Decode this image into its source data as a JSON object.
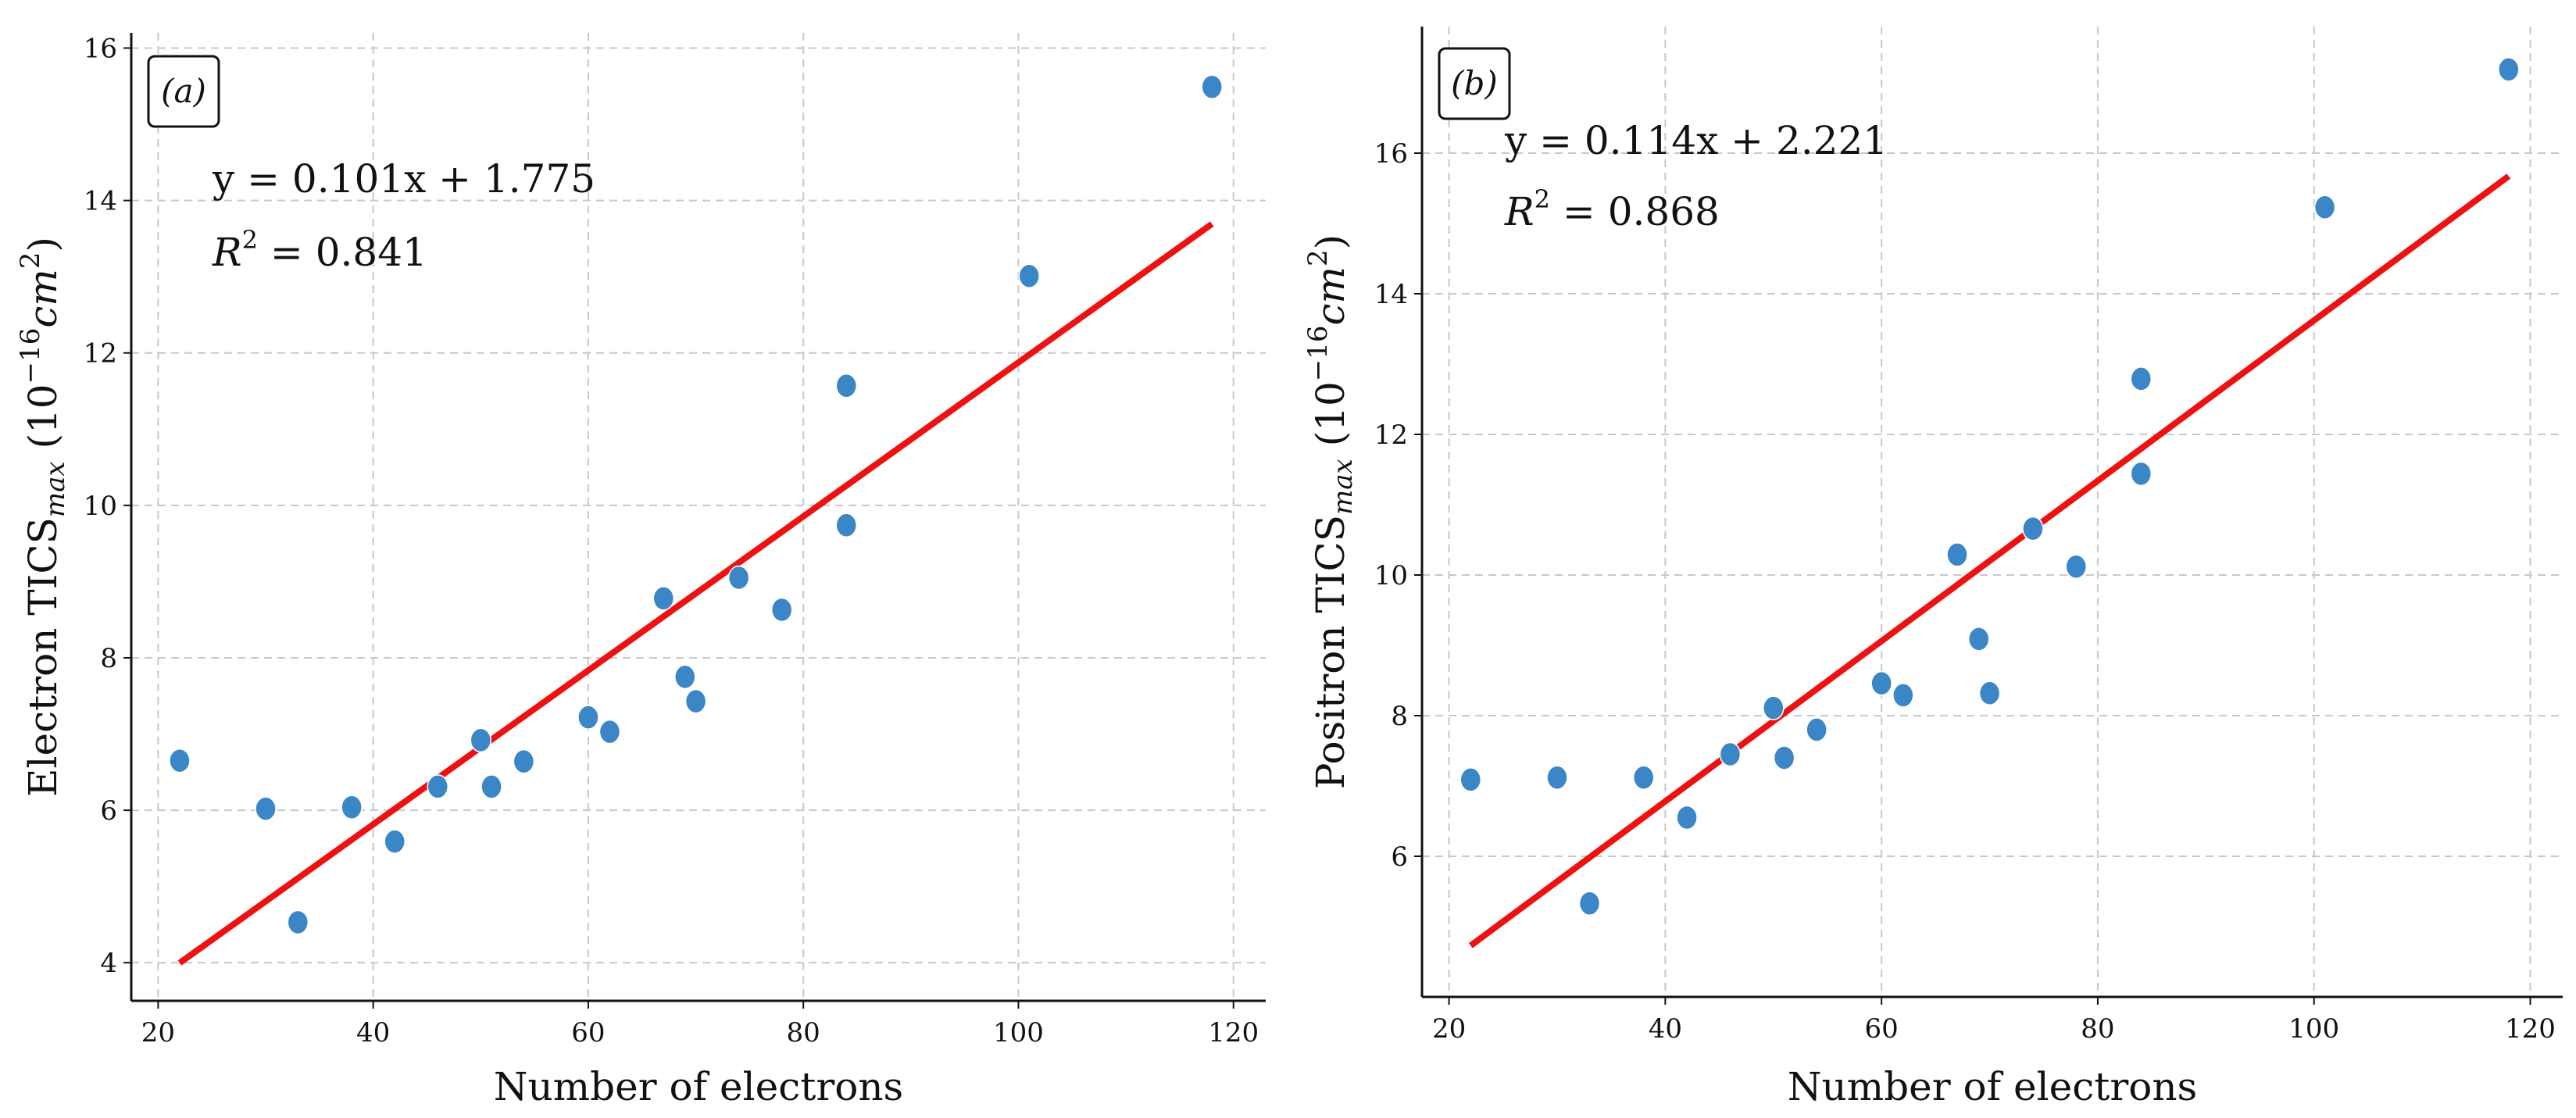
{
  "colors": {
    "points": "#3b86c6",
    "fit_line": "#ee1111",
    "grid": "#c8c8c8",
    "axis": "#111111"
  },
  "chart_data": [
    {
      "type": "scatter",
      "panel_label": "(a)",
      "xlabel": "Number of electrons",
      "ylabel": "Electron TICS",
      "ylabel_sub": "max",
      "ylabel_unit_open": "(10",
      "ylabel_unit_exp": "−16",
      "ylabel_unit_cm": "cm",
      "ylabel_unit_cm_exp": "2",
      "ylabel_unit_close": ")",
      "equation": "y = 0.101x + 1.775",
      "r2_label": "R",
      "r2_sup": "2",
      "r2_value": " = 0.841",
      "xlim": [
        17.5,
        123
      ],
      "ylim": [
        3.5,
        16.2
      ],
      "xticks": [
        20,
        40,
        60,
        80,
        100,
        120
      ],
      "yticks": [
        4,
        6,
        8,
        10,
        12,
        14,
        16
      ],
      "fit": {
        "slope": 0.101,
        "intercept": 1.775,
        "x_range": [
          22,
          118
        ]
      },
      "points": [
        {
          "x": 22,
          "y": 6.65
        },
        {
          "x": 30,
          "y": 6.02
        },
        {
          "x": 33,
          "y": 4.53
        },
        {
          "x": 38,
          "y": 6.04
        },
        {
          "x": 42,
          "y": 5.59
        },
        {
          "x": 46,
          "y": 6.31
        },
        {
          "x": 50,
          "y": 6.92
        },
        {
          "x": 51,
          "y": 6.31
        },
        {
          "x": 54,
          "y": 6.64
        },
        {
          "x": 60,
          "y": 7.22
        },
        {
          "x": 62,
          "y": 7.03
        },
        {
          "x": 67,
          "y": 8.78
        },
        {
          "x": 69,
          "y": 7.75
        },
        {
          "x": 70,
          "y": 7.43
        },
        {
          "x": 74,
          "y": 9.05
        },
        {
          "x": 78,
          "y": 8.63
        },
        {
          "x": 84,
          "y": 11.57
        },
        {
          "x": 84,
          "y": 9.74
        },
        {
          "x": 101,
          "y": 13.01
        },
        {
          "x": 118,
          "y": 15.49
        }
      ]
    },
    {
      "type": "scatter",
      "panel_label": "(b)",
      "xlabel": "Number of electrons",
      "ylabel": "Positron TICS",
      "ylabel_sub": "max",
      "ylabel_unit_open": "(10",
      "ylabel_unit_exp": "−16",
      "ylabel_unit_cm": "cm",
      "ylabel_unit_cm_exp": "2",
      "ylabel_unit_close": ")",
      "equation": "y = 0.114x + 2.221",
      "r2_label": "R",
      "r2_sup": "2",
      "r2_value": " = 0.868",
      "xlim": [
        17.5,
        123
      ],
      "ylim": [
        4.0,
        17.8
      ],
      "xticks": [
        20,
        40,
        60,
        80,
        100,
        120
      ],
      "yticks": [
        6,
        8,
        10,
        12,
        14,
        16
      ],
      "fit": {
        "slope": 0.114,
        "intercept": 2.221,
        "x_range": [
          22,
          118
        ]
      },
      "points": [
        {
          "x": 22,
          "y": 7.09
        },
        {
          "x": 30,
          "y": 7.12
        },
        {
          "x": 33,
          "y": 5.33
        },
        {
          "x": 38,
          "y": 7.12
        },
        {
          "x": 42,
          "y": 6.55
        },
        {
          "x": 46,
          "y": 7.45
        },
        {
          "x": 50,
          "y": 8.11
        },
        {
          "x": 51,
          "y": 7.4
        },
        {
          "x": 54,
          "y": 7.8
        },
        {
          "x": 60,
          "y": 8.46
        },
        {
          "x": 62,
          "y": 8.29
        },
        {
          "x": 67,
          "y": 10.29
        },
        {
          "x": 69,
          "y": 9.09
        },
        {
          "x": 70,
          "y": 8.32
        },
        {
          "x": 74,
          "y": 10.66
        },
        {
          "x": 78,
          "y": 10.12
        },
        {
          "x": 84,
          "y": 12.79
        },
        {
          "x": 84,
          "y": 11.44
        },
        {
          "x": 101,
          "y": 15.23
        },
        {
          "x": 118,
          "y": 17.19
        }
      ]
    }
  ]
}
